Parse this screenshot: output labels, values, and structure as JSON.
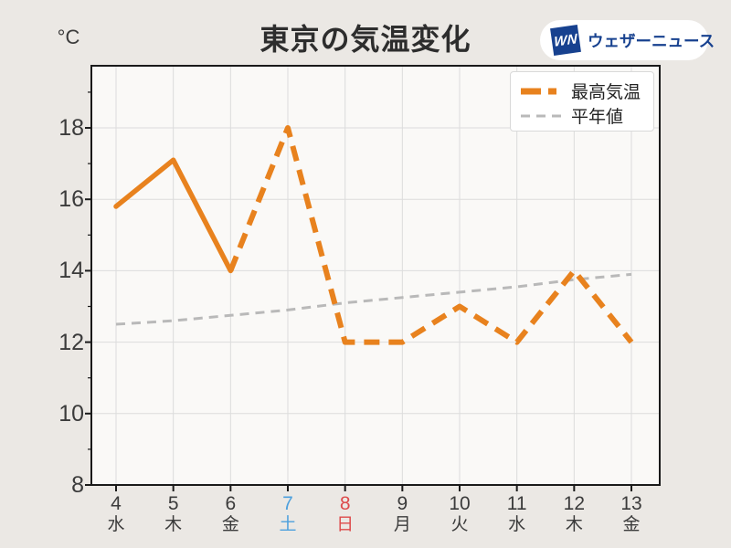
{
  "header": {
    "unit_label": "°C",
    "title": "東京の気温変化",
    "logo": {
      "mark_text": "WN",
      "brand_text": "ウェザーニュース"
    }
  },
  "legend": {
    "items": [
      {
        "label": "最高気温",
        "color": "#e8821e",
        "dash": "22 8 9 8",
        "stroke_width": 7
      },
      {
        "label": "平年値",
        "color": "#b9b9b9",
        "dash": "10 7",
        "stroke_width": 3
      }
    ]
  },
  "chart_data": {
    "type": "line",
    "title": "東京の気温変化",
    "ylabel": "°C",
    "x": [
      "4",
      "5",
      "6",
      "7",
      "8",
      "9",
      "10",
      "11",
      "12",
      "13"
    ],
    "x_weekdays": [
      "水",
      "木",
      "金",
      "土",
      "日",
      "月",
      "火",
      "水",
      "木",
      "金"
    ],
    "x_label_colors": [
      "#3b3b3b",
      "#3b3b3b",
      "#3b3b3b",
      "#4da0dd",
      "#dd4b4b",
      "#3b3b3b",
      "#3b3b3b",
      "#3b3b3b",
      "#3b3b3b",
      "#3b3b3b"
    ],
    "yticks": [
      8,
      10,
      12,
      14,
      16,
      18
    ],
    "y_minor_ticks": [
      9,
      11,
      13,
      15,
      17,
      19
    ],
    "ylim": [
      8,
      19.74
    ],
    "grid": true,
    "legend_position": "top-right",
    "series": [
      {
        "name": "最高気温",
        "color": "#e8821e",
        "style": "solid-then-dashed",
        "solid_until_index": 2,
        "values": [
          15.8,
          17.1,
          14.0,
          18.0,
          12.0,
          12.0,
          13.0,
          12.0,
          14.0,
          12.0
        ]
      },
      {
        "name": "平年値",
        "color": "#b9b9b9",
        "style": "dashed",
        "values": [
          12.5,
          12.6,
          12.75,
          12.9,
          13.1,
          13.25,
          13.4,
          13.55,
          13.75,
          13.9
        ]
      }
    ]
  },
  "colors": {
    "background": "#ebe8e4",
    "plot_background": "#faf9f7",
    "grid": "#dcdcdc",
    "axis": "#1a1a1a",
    "text": "#3b3b3b",
    "title": "#2d2d2d",
    "saturday_blue": "#4da0dd",
    "sunday_red": "#dd4b4b",
    "logo_blue": "#17418f"
  }
}
